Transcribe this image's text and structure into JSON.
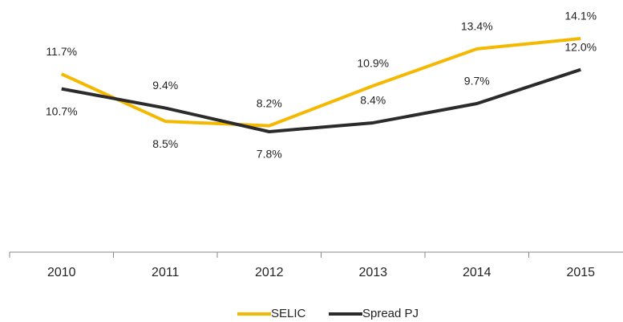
{
  "chart_data": {
    "type": "line",
    "categories": [
      "2010",
      "2011",
      "2012",
      "2013",
      "2014",
      "2015"
    ],
    "series": [
      {
        "name": "SELIC",
        "color": "#f5b800",
        "values": [
          11.7,
          8.5,
          8.2,
          10.9,
          13.4,
          14.1
        ],
        "value_labels": [
          "11.7%",
          "8.5%",
          "8.2%",
          "10.9%",
          "13.4%",
          "14.1%"
        ]
      },
      {
        "name": "Spread PJ",
        "color": "#2b2b2b",
        "values": [
          10.7,
          9.4,
          7.8,
          8.4,
          9.7,
          12.0
        ],
        "value_labels": [
          "10.7%",
          "9.4%",
          "7.8%",
          "8.4%",
          "9.7%",
          "12.0%"
        ]
      }
    ],
    "legend": "bottom"
  }
}
